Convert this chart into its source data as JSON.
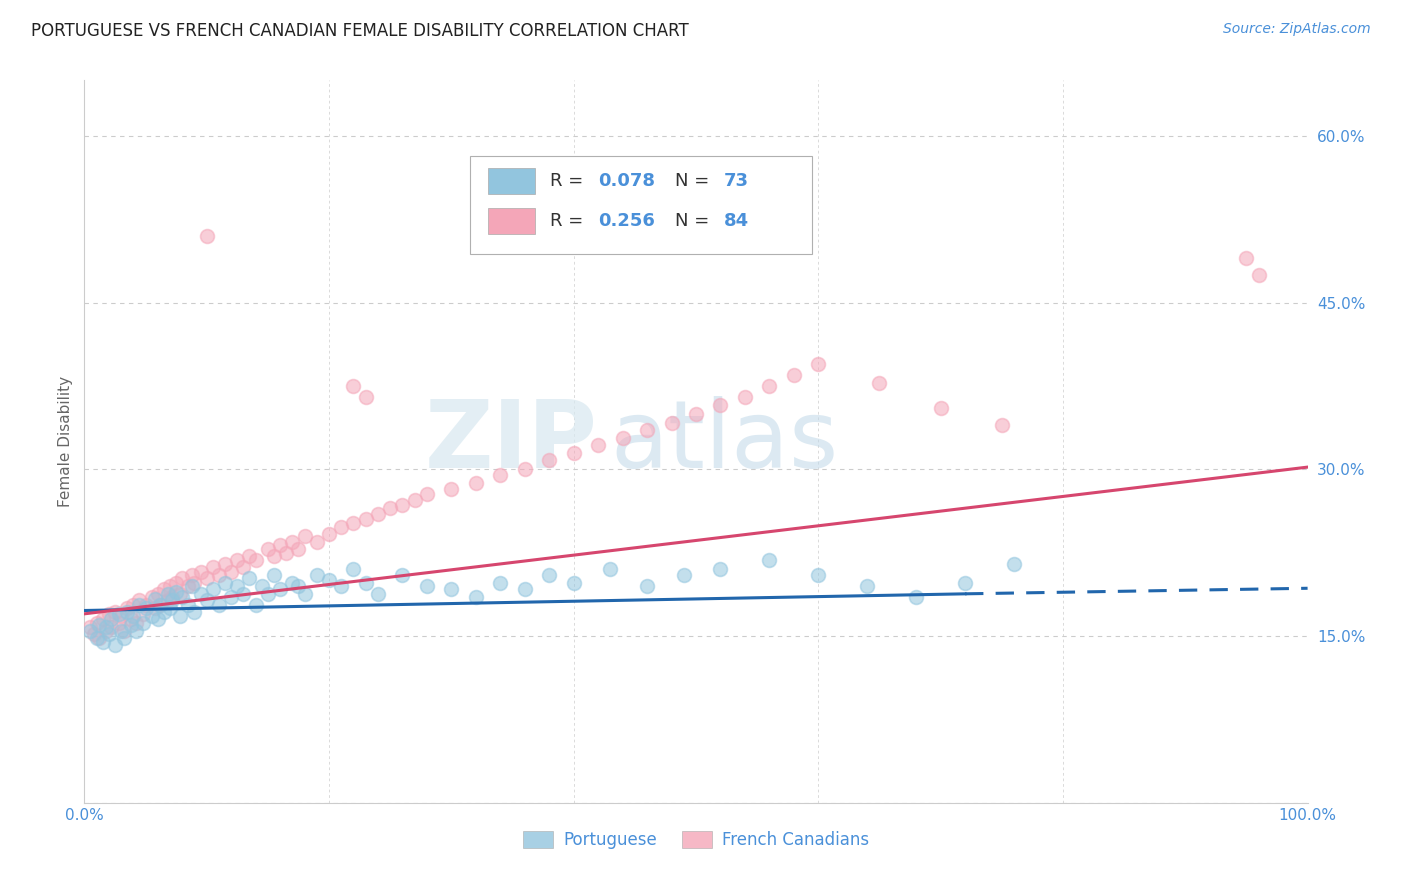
{
  "title": "PORTUGUESE VS FRENCH CANADIAN FEMALE DISABILITY CORRELATION CHART",
  "source": "Source: ZipAtlas.com",
  "ylabel": "Female Disability",
  "watermark_zip": "ZIP",
  "watermark_atlas": "atlas",
  "legend_blue_r": "0.078",
  "legend_blue_n": "73",
  "legend_pink_r": "0.256",
  "legend_pink_n": "84",
  "legend_label_blue": "Portuguese",
  "legend_label_pink": "French Canadians",
  "blue_color": "#92c5de",
  "pink_color": "#f4a6b8",
  "blue_line_color": "#2166ac",
  "pink_line_color": "#d6466e",
  "axis_label_color": "#4a90d9",
  "title_color": "#222222",
  "xlim": [
    0.0,
    1.0
  ],
  "ylim": [
    0.0,
    0.65
  ],
  "blue_scatter_x": [
    0.005,
    0.01,
    0.012,
    0.015,
    0.018,
    0.02,
    0.022,
    0.025,
    0.028,
    0.03,
    0.032,
    0.035,
    0.038,
    0.04,
    0.042,
    0.045,
    0.048,
    0.05,
    0.055,
    0.058,
    0.06,
    0.062,
    0.065,
    0.068,
    0.07,
    0.072,
    0.075,
    0.078,
    0.08,
    0.085,
    0.088,
    0.09,
    0.095,
    0.1,
    0.105,
    0.11,
    0.115,
    0.12,
    0.125,
    0.13,
    0.135,
    0.14,
    0.145,
    0.15,
    0.155,
    0.16,
    0.17,
    0.175,
    0.18,
    0.19,
    0.2,
    0.21,
    0.22,
    0.23,
    0.24,
    0.26,
    0.28,
    0.3,
    0.32,
    0.34,
    0.36,
    0.38,
    0.4,
    0.43,
    0.46,
    0.49,
    0.52,
    0.56,
    0.6,
    0.64,
    0.68,
    0.72,
    0.76
  ],
  "blue_scatter_y": [
    0.155,
    0.148,
    0.16,
    0.145,
    0.158,
    0.152,
    0.165,
    0.142,
    0.17,
    0.155,
    0.148,
    0.172,
    0.16,
    0.168,
    0.155,
    0.178,
    0.162,
    0.175,
    0.168,
    0.183,
    0.165,
    0.178,
    0.172,
    0.188,
    0.175,
    0.182,
    0.19,
    0.168,
    0.185,
    0.178,
    0.195,
    0.172,
    0.188,
    0.182,
    0.192,
    0.178,
    0.198,
    0.185,
    0.195,
    0.188,
    0.202,
    0.178,
    0.195,
    0.188,
    0.205,
    0.192,
    0.198,
    0.195,
    0.188,
    0.205,
    0.2,
    0.195,
    0.21,
    0.198,
    0.188,
    0.205,
    0.195,
    0.192,
    0.185,
    0.198,
    0.192,
    0.205,
    0.198,
    0.21,
    0.195,
    0.205,
    0.21,
    0.218,
    0.205,
    0.195,
    0.185,
    0.198,
    0.215
  ],
  "pink_scatter_x": [
    0.005,
    0.008,
    0.01,
    0.012,
    0.015,
    0.018,
    0.02,
    0.022,
    0.025,
    0.028,
    0.03,
    0.032,
    0.035,
    0.038,
    0.04,
    0.042,
    0.045,
    0.048,
    0.05,
    0.055,
    0.058,
    0.06,
    0.062,
    0.065,
    0.068,
    0.07,
    0.072,
    0.075,
    0.078,
    0.08,
    0.085,
    0.088,
    0.09,
    0.095,
    0.1,
    0.105,
    0.11,
    0.115,
    0.12,
    0.125,
    0.13,
    0.135,
    0.14,
    0.15,
    0.155,
    0.16,
    0.165,
    0.17,
    0.175,
    0.18,
    0.19,
    0.2,
    0.21,
    0.22,
    0.23,
    0.24,
    0.25,
    0.26,
    0.27,
    0.28,
    0.3,
    0.32,
    0.34,
    0.36,
    0.38,
    0.4,
    0.42,
    0.44,
    0.46,
    0.48,
    0.5,
    0.52,
    0.54,
    0.56,
    0.58,
    0.6,
    0.65,
    0.7,
    0.75,
    0.22,
    0.23,
    0.1,
    0.95,
    0.96
  ],
  "pink_scatter_y": [
    0.158,
    0.152,
    0.162,
    0.148,
    0.165,
    0.155,
    0.17,
    0.158,
    0.172,
    0.162,
    0.168,
    0.155,
    0.175,
    0.165,
    0.178,
    0.162,
    0.182,
    0.17,
    0.178,
    0.185,
    0.175,
    0.188,
    0.178,
    0.192,
    0.182,
    0.195,
    0.185,
    0.198,
    0.188,
    0.202,
    0.195,
    0.205,
    0.198,
    0.208,
    0.202,
    0.212,
    0.205,
    0.215,
    0.208,
    0.218,
    0.212,
    0.222,
    0.218,
    0.228,
    0.222,
    0.232,
    0.225,
    0.235,
    0.228,
    0.24,
    0.235,
    0.242,
    0.248,
    0.252,
    0.255,
    0.26,
    0.265,
    0.268,
    0.272,
    0.278,
    0.282,
    0.288,
    0.295,
    0.3,
    0.308,
    0.315,
    0.322,
    0.328,
    0.335,
    0.342,
    0.35,
    0.358,
    0.365,
    0.375,
    0.385,
    0.395,
    0.378,
    0.355,
    0.34,
    0.375,
    0.365,
    0.51,
    0.49,
    0.475
  ],
  "blue_trend_x0": 0.0,
  "blue_trend_x1": 0.72,
  "blue_trend_x2": 1.0,
  "blue_trend_y0": 0.173,
  "blue_trend_y1": 0.188,
  "blue_trend_y2": 0.193,
  "pink_trend_x0": 0.0,
  "pink_trend_x1": 1.0,
  "pink_trend_y0": 0.17,
  "pink_trend_y1": 0.302,
  "background_color": "#ffffff",
  "grid_color": "#cccccc",
  "marker_size": 100,
  "marker_alpha": 0.55,
  "font_size_title": 12,
  "font_size_axis": 11,
  "font_size_tick": 11,
  "font_size_legend": 13,
  "font_size_source": 10
}
